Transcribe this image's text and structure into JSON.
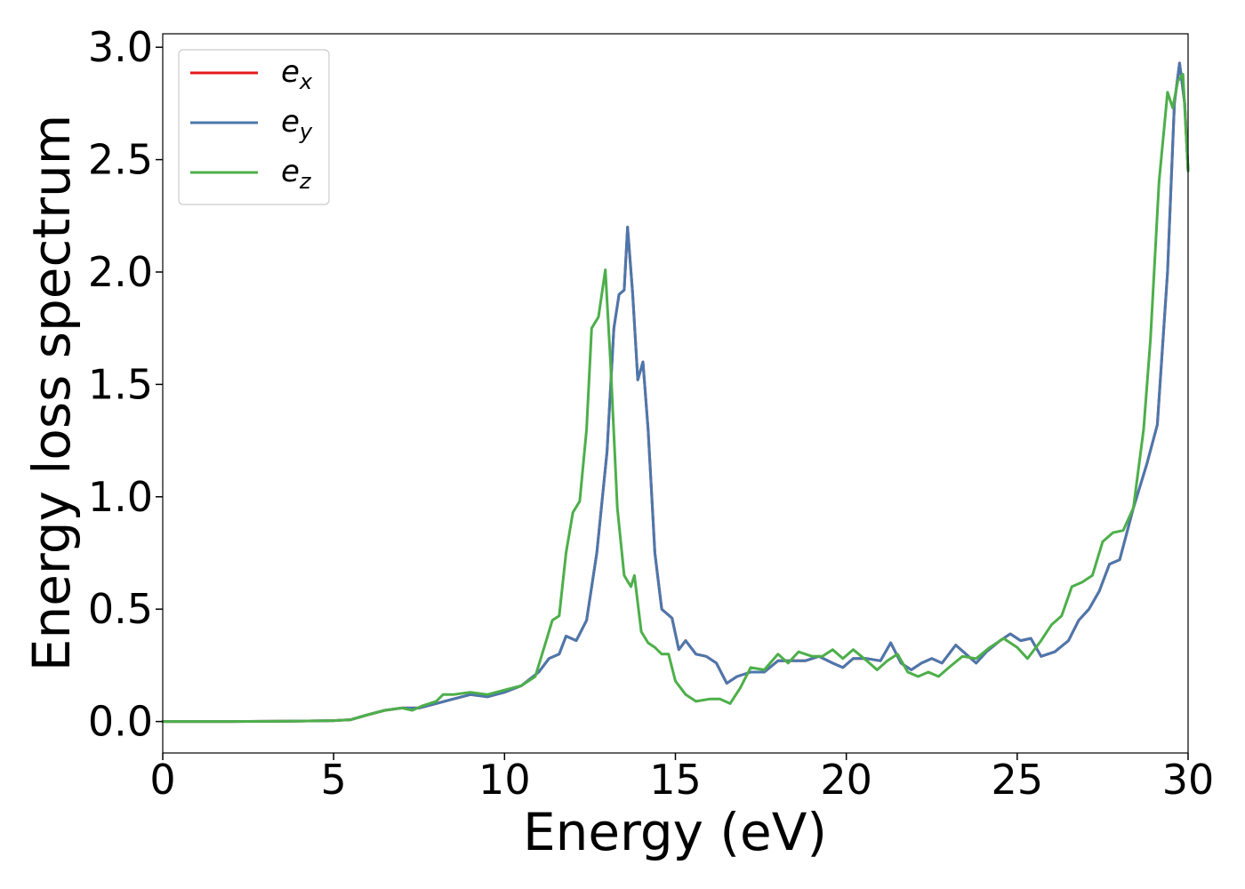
{
  "chart_data": {
    "type": "line",
    "title": "",
    "xlabel": "Energy (eV)",
    "ylabel": "Energy loss spectrum",
    "xlim": [
      0,
      30
    ],
    "ylim": [
      -0.14,
      3.06
    ],
    "xticks": [
      "0",
      "5",
      "10",
      "15",
      "20",
      "25",
      "30"
    ],
    "yticks": [
      "0.0",
      "0.5",
      "1.0",
      "1.5",
      "2.0",
      "2.5",
      "3.0"
    ],
    "grid": false,
    "legend_position": "top-left",
    "series": [
      {
        "name": "e_x",
        "legend_base": "e",
        "legend_sub": "x",
        "color": "#e41a1c",
        "points": [
          [
            0,
            0
          ],
          [
            2,
            0
          ],
          [
            4,
            0.002
          ],
          [
            5,
            0.004
          ],
          [
            5.5,
            0.008
          ],
          [
            6,
            0.03
          ],
          [
            6.5,
            0.05
          ],
          [
            7,
            0.06
          ],
          [
            7.5,
            0.06
          ],
          [
            8,
            0.08
          ],
          [
            8.5,
            0.1
          ],
          [
            9,
            0.12
          ],
          [
            9.5,
            0.11
          ],
          [
            10,
            0.13
          ],
          [
            10.5,
            0.16
          ],
          [
            11,
            0.22
          ],
          [
            11.3,
            0.28
          ],
          [
            11.6,
            0.3
          ],
          [
            11.8,
            0.38
          ],
          [
            12.1,
            0.36
          ],
          [
            12.4,
            0.45
          ],
          [
            12.7,
            0.75
          ],
          [
            13,
            1.2
          ],
          [
            13.2,
            1.75
          ],
          [
            13.35,
            1.9
          ],
          [
            13.5,
            1.92
          ],
          [
            13.6,
            2.2
          ],
          [
            13.75,
            1.9
          ],
          [
            13.9,
            1.52
          ],
          [
            14.05,
            1.6
          ],
          [
            14.2,
            1.3
          ],
          [
            14.4,
            0.75
          ],
          [
            14.6,
            0.5
          ],
          [
            14.9,
            0.46
          ],
          [
            15.1,
            0.32
          ],
          [
            15.3,
            0.36
          ],
          [
            15.6,
            0.3
          ],
          [
            15.9,
            0.29
          ],
          [
            16.2,
            0.26
          ],
          [
            16.5,
            0.17
          ],
          [
            16.8,
            0.2
          ],
          [
            17.2,
            0.22
          ],
          [
            17.6,
            0.22
          ],
          [
            18,
            0.27
          ],
          [
            18.4,
            0.27
          ],
          [
            18.8,
            0.27
          ],
          [
            19.2,
            0.29
          ],
          [
            19.6,
            0.26
          ],
          [
            19.9,
            0.24
          ],
          [
            20.2,
            0.28
          ],
          [
            20.6,
            0.28
          ],
          [
            21,
            0.27
          ],
          [
            21.3,
            0.35
          ],
          [
            21.6,
            0.26
          ],
          [
            21.9,
            0.23
          ],
          [
            22.2,
            0.26
          ],
          [
            22.5,
            0.28
          ],
          [
            22.8,
            0.26
          ],
          [
            23.2,
            0.34
          ],
          [
            23.5,
            0.3
          ],
          [
            23.8,
            0.26
          ],
          [
            24.1,
            0.31
          ],
          [
            24.5,
            0.36
          ],
          [
            24.8,
            0.39
          ],
          [
            25.1,
            0.36
          ],
          [
            25.4,
            0.37
          ],
          [
            25.7,
            0.29
          ],
          [
            26.1,
            0.31
          ],
          [
            26.5,
            0.36
          ],
          [
            26.8,
            0.45
          ],
          [
            27.1,
            0.5
          ],
          [
            27.4,
            0.58
          ],
          [
            27.7,
            0.7
          ],
          [
            28,
            0.72
          ],
          [
            28.4,
            0.95
          ],
          [
            28.8,
            1.15
          ],
          [
            29.1,
            1.32
          ],
          [
            29.4,
            2.0
          ],
          [
            29.6,
            2.75
          ],
          [
            29.75,
            2.93
          ],
          [
            29.9,
            2.75
          ],
          [
            30,
            2.45
          ]
        ]
      },
      {
        "name": "e_y",
        "legend_base": "e",
        "legend_sub": "y",
        "color": "#4a78ad",
        "points": [
          [
            0,
            0
          ],
          [
            2,
            0
          ],
          [
            4,
            0.002
          ],
          [
            5,
            0.004
          ],
          [
            5.5,
            0.008
          ],
          [
            6,
            0.03
          ],
          [
            6.5,
            0.05
          ],
          [
            7,
            0.06
          ],
          [
            7.5,
            0.06
          ],
          [
            8,
            0.08
          ],
          [
            8.5,
            0.1
          ],
          [
            9,
            0.12
          ],
          [
            9.5,
            0.11
          ],
          [
            10,
            0.13
          ],
          [
            10.5,
            0.16
          ],
          [
            11,
            0.22
          ],
          [
            11.3,
            0.28
          ],
          [
            11.6,
            0.3
          ],
          [
            11.8,
            0.38
          ],
          [
            12.1,
            0.36
          ],
          [
            12.4,
            0.45
          ],
          [
            12.7,
            0.75
          ],
          [
            13,
            1.2
          ],
          [
            13.2,
            1.75
          ],
          [
            13.35,
            1.9
          ],
          [
            13.5,
            1.92
          ],
          [
            13.6,
            2.2
          ],
          [
            13.75,
            1.9
          ],
          [
            13.9,
            1.52
          ],
          [
            14.05,
            1.6
          ],
          [
            14.2,
            1.3
          ],
          [
            14.4,
            0.75
          ],
          [
            14.6,
            0.5
          ],
          [
            14.9,
            0.46
          ],
          [
            15.1,
            0.32
          ],
          [
            15.3,
            0.36
          ],
          [
            15.6,
            0.3
          ],
          [
            15.9,
            0.29
          ],
          [
            16.2,
            0.26
          ],
          [
            16.5,
            0.17
          ],
          [
            16.8,
            0.2
          ],
          [
            17.2,
            0.22
          ],
          [
            17.6,
            0.22
          ],
          [
            18,
            0.27
          ],
          [
            18.4,
            0.27
          ],
          [
            18.8,
            0.27
          ],
          [
            19.2,
            0.29
          ],
          [
            19.6,
            0.26
          ],
          [
            19.9,
            0.24
          ],
          [
            20.2,
            0.28
          ],
          [
            20.6,
            0.28
          ],
          [
            21,
            0.27
          ],
          [
            21.3,
            0.35
          ],
          [
            21.6,
            0.26
          ],
          [
            21.9,
            0.23
          ],
          [
            22.2,
            0.26
          ],
          [
            22.5,
            0.28
          ],
          [
            22.8,
            0.26
          ],
          [
            23.2,
            0.34
          ],
          [
            23.5,
            0.3
          ],
          [
            23.8,
            0.26
          ],
          [
            24.1,
            0.31
          ],
          [
            24.5,
            0.36
          ],
          [
            24.8,
            0.39
          ],
          [
            25.1,
            0.36
          ],
          [
            25.4,
            0.37
          ],
          [
            25.7,
            0.29
          ],
          [
            26.1,
            0.31
          ],
          [
            26.5,
            0.36
          ],
          [
            26.8,
            0.45
          ],
          [
            27.1,
            0.5
          ],
          [
            27.4,
            0.58
          ],
          [
            27.7,
            0.7
          ],
          [
            28,
            0.72
          ],
          [
            28.4,
            0.95
          ],
          [
            28.8,
            1.15
          ],
          [
            29.1,
            1.32
          ],
          [
            29.4,
            2.0
          ],
          [
            29.6,
            2.75
          ],
          [
            29.75,
            2.93
          ],
          [
            29.9,
            2.75
          ],
          [
            30,
            2.45
          ]
        ]
      },
      {
        "name": "e_z",
        "legend_base": "e",
        "legend_sub": "z",
        "color": "#4daf4a",
        "points": [
          [
            0,
            0
          ],
          [
            2,
            0
          ],
          [
            4,
            0.002
          ],
          [
            5,
            0.004
          ],
          [
            5.5,
            0.008
          ],
          [
            6,
            0.03
          ],
          [
            6.5,
            0.05
          ],
          [
            7,
            0.06
          ],
          [
            7.3,
            0.05
          ],
          [
            7.6,
            0.07
          ],
          [
            8,
            0.09
          ],
          [
            8.2,
            0.12
          ],
          [
            8.5,
            0.12
          ],
          [
            9,
            0.13
          ],
          [
            9.5,
            0.12
          ],
          [
            10,
            0.14
          ],
          [
            10.5,
            0.16
          ],
          [
            10.9,
            0.2
          ],
          [
            11.2,
            0.35
          ],
          [
            11.4,
            0.45
          ],
          [
            11.6,
            0.47
          ],
          [
            11.8,
            0.75
          ],
          [
            12,
            0.93
          ],
          [
            12.2,
            0.98
          ],
          [
            12.4,
            1.3
          ],
          [
            12.55,
            1.75
          ],
          [
            12.75,
            1.8
          ],
          [
            12.95,
            2.01
          ],
          [
            13.1,
            1.6
          ],
          [
            13.3,
            0.95
          ],
          [
            13.5,
            0.65
          ],
          [
            13.7,
            0.6
          ],
          [
            13.8,
            0.65
          ],
          [
            14,
            0.4
          ],
          [
            14.2,
            0.35
          ],
          [
            14.4,
            0.33
          ],
          [
            14.6,
            0.3
          ],
          [
            14.8,
            0.3
          ],
          [
            15,
            0.18
          ],
          [
            15.3,
            0.12
          ],
          [
            15.6,
            0.09
          ],
          [
            16,
            0.1
          ],
          [
            16.3,
            0.1
          ],
          [
            16.6,
            0.08
          ],
          [
            16.9,
            0.15
          ],
          [
            17.2,
            0.24
          ],
          [
            17.6,
            0.23
          ],
          [
            18,
            0.3
          ],
          [
            18.3,
            0.26
          ],
          [
            18.6,
            0.31
          ],
          [
            19,
            0.29
          ],
          [
            19.3,
            0.29
          ],
          [
            19.6,
            0.32
          ],
          [
            19.9,
            0.28
          ],
          [
            20.2,
            0.32
          ],
          [
            20.6,
            0.27
          ],
          [
            20.9,
            0.23
          ],
          [
            21.2,
            0.27
          ],
          [
            21.5,
            0.3
          ],
          [
            21.8,
            0.22
          ],
          [
            22.1,
            0.2
          ],
          [
            22.4,
            0.22
          ],
          [
            22.7,
            0.2
          ],
          [
            23,
            0.24
          ],
          [
            23.4,
            0.29
          ],
          [
            23.8,
            0.28
          ],
          [
            24.2,
            0.33
          ],
          [
            24.6,
            0.37
          ],
          [
            25,
            0.33
          ],
          [
            25.3,
            0.28
          ],
          [
            25.7,
            0.36
          ],
          [
            26,
            0.43
          ],
          [
            26.3,
            0.47
          ],
          [
            26.6,
            0.6
          ],
          [
            26.9,
            0.62
          ],
          [
            27.2,
            0.65
          ],
          [
            27.5,
            0.8
          ],
          [
            27.8,
            0.84
          ],
          [
            28.1,
            0.85
          ],
          [
            28.4,
            0.95
          ],
          [
            28.7,
            1.3
          ],
          [
            28.9,
            1.7
          ],
          [
            29.15,
            2.4
          ],
          [
            29.4,
            2.8
          ],
          [
            29.55,
            2.73
          ],
          [
            29.7,
            2.85
          ],
          [
            29.85,
            2.88
          ],
          [
            30,
            2.45
          ]
        ]
      }
    ]
  }
}
